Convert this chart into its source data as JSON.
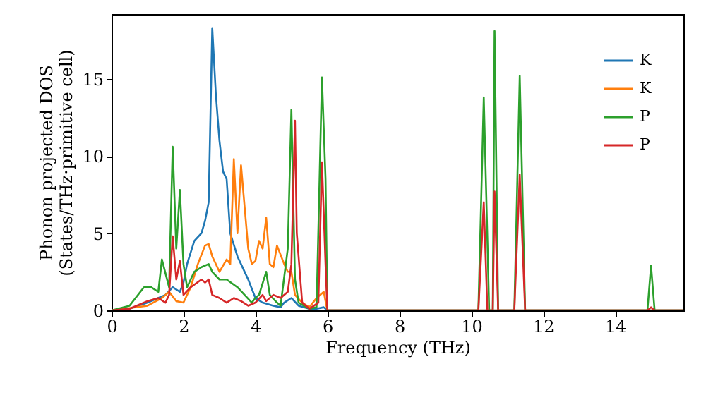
{
  "chart_data": {
    "type": "line",
    "xlabel": "Frequency (THz)",
    "ylabel": "Phonon projected DOS\n(States/THz·primitive cell)",
    "xlim": [
      0,
      15.9
    ],
    "ylim": [
      0,
      19.2
    ],
    "xticks": [
      0,
      2,
      4,
      6,
      8,
      10,
      12,
      14
    ],
    "yticks": [
      0,
      5,
      10,
      15
    ],
    "grid": false,
    "legend": "top right",
    "marker": "none",
    "line_style": "solid",
    "series": [
      {
        "name": "K",
        "color": "#1f77b4",
        "x": [
          0,
          0.5,
          1.0,
          1.3,
          1.5,
          1.7,
          1.9,
          2.0,
          2.1,
          2.3,
          2.5,
          2.6,
          2.7,
          2.8,
          2.9,
          3.0,
          3.1,
          3.2,
          3.3,
          3.5,
          3.6,
          3.8,
          4.0,
          4.2,
          4.5,
          4.7,
          4.8,
          5.0,
          5.2,
          5.5,
          5.7,
          5.9,
          6.0,
          15.9
        ],
        "values": [
          0,
          0.1,
          0.5,
          0.8,
          1.0,
          1.5,
          1.2,
          1.8,
          3.0,
          4.5,
          5.0,
          5.8,
          7.0,
          18.3,
          14,
          11,
          9,
          8.5,
          5,
          3.5,
          3,
          2,
          0.8,
          0.5,
          0.3,
          0.2,
          0.5,
          0.8,
          0.3,
          0.1,
          0.1,
          0.2,
          0,
          0
        ]
      },
      {
        "name": "K",
        "color": "#ff7f0e",
        "x": [
          0,
          1.0,
          1.4,
          1.6,
          1.8,
          2.0,
          2.2,
          2.4,
          2.6,
          2.7,
          2.8,
          3.0,
          3.2,
          3.3,
          3.4,
          3.5,
          3.6,
          3.8,
          3.9,
          4.0,
          4.1,
          4.2,
          4.3,
          4.4,
          4.5,
          4.6,
          4.8,
          4.9,
          5.0,
          5.1,
          5.3,
          5.5,
          5.7,
          5.9,
          6.0,
          15.9
        ],
        "values": [
          0,
          0.3,
          0.8,
          1.2,
          0.6,
          0.5,
          1.5,
          3.0,
          4.2,
          4.3,
          3.5,
          2.5,
          3.3,
          3.0,
          9.8,
          5.0,
          9.4,
          4.0,
          3.0,
          3.2,
          4.5,
          4.0,
          6.0,
          3.0,
          2.8,
          4.2,
          3.0,
          2.5,
          2.5,
          1.0,
          0.5,
          0.2,
          0.8,
          1.2,
          0,
          0
        ]
      },
      {
        "name": "P",
        "color": "#2ca02c",
        "x": [
          0,
          0.5,
          0.9,
          1.1,
          1.3,
          1.4,
          1.6,
          1.7,
          1.8,
          1.9,
          2.0,
          2.1,
          2.3,
          2.5,
          2.7,
          2.8,
          3.0,
          3.2,
          3.5,
          3.7,
          3.9,
          4.0,
          4.1,
          4.3,
          4.4,
          4.6,
          4.7,
          4.9,
          5.0,
          5.1,
          5.2,
          5.5,
          5.7,
          5.85,
          5.95,
          6.0,
          10.2,
          10.35,
          10.5,
          10.6,
          10.65,
          10.75,
          11.2,
          11.35,
          11.5,
          14.9,
          15.0,
          15.1,
          15.9
        ],
        "values": [
          0,
          0.3,
          1.5,
          1.5,
          1.2,
          3.3,
          1.5,
          10.6,
          4.0,
          7.8,
          3.0,
          1.5,
          2.5,
          2.8,
          3.0,
          2.5,
          2.0,
          2.0,
          1.5,
          1.0,
          0.5,
          0.8,
          1.0,
          2.5,
          1.0,
          0.5,
          0.3,
          4.0,
          13.0,
          2.0,
          0.5,
          0.1,
          0.2,
          15.1,
          8.5,
          0,
          0,
          13.8,
          0,
          0,
          18.1,
          0,
          0,
          15.2,
          0,
          0,
          2.9,
          0,
          0
        ]
      },
      {
        "name": "P",
        "color": "#d62728",
        "x": [
          0,
          0.5,
          1.0,
          1.3,
          1.5,
          1.6,
          1.7,
          1.8,
          1.9,
          2.0,
          2.2,
          2.5,
          2.6,
          2.7,
          2.8,
          3.0,
          3.2,
          3.4,
          3.6,
          3.8,
          4.0,
          4.2,
          4.3,
          4.5,
          4.7,
          4.9,
          5.0,
          5.1,
          5.15,
          5.3,
          5.5,
          5.75,
          5.85,
          5.95,
          6.0,
          10.2,
          10.35,
          10.45,
          10.6,
          10.65,
          10.75,
          11.2,
          11.35,
          11.5,
          14.9,
          15.0,
          15.1,
          15.9
        ],
        "values": [
          0,
          0.1,
          0.6,
          0.8,
          0.5,
          1.0,
          4.8,
          2.0,
          3.2,
          1.0,
          1.5,
          2.0,
          1.8,
          2.0,
          1.0,
          0.8,
          0.5,
          0.8,
          0.6,
          0.3,
          0.5,
          1.0,
          0.6,
          1.0,
          0.8,
          1.2,
          3.0,
          12.3,
          5.0,
          0.5,
          0.1,
          0.5,
          9.6,
          3.0,
          0,
          0,
          7.0,
          0,
          0,
          7.7,
          0,
          0,
          8.8,
          0,
          0,
          0.2,
          0,
          0
        ]
      }
    ]
  }
}
